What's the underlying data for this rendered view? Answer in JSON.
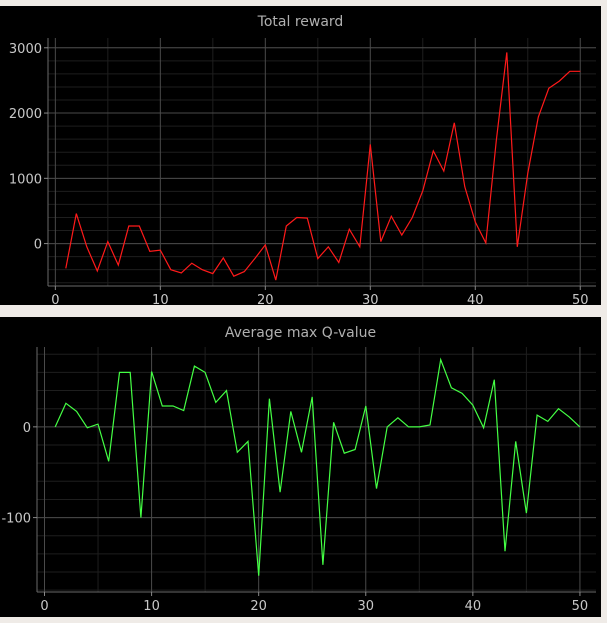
{
  "chart_data": [
    {
      "type": "line",
      "title": "Total reward",
      "xlabel": "",
      "ylabel": "",
      "xlim": [
        -0.7,
        51.5
      ],
      "ylim": [
        -650,
        3150
      ],
      "xticks": [
        0,
        10,
        20,
        30,
        40,
        50
      ],
      "yticks": [
        0,
        1000,
        2000,
        3000
      ],
      "ytick_labels": [
        "0",
        "1000",
        "2000",
        "3000"
      ],
      "grid": true,
      "series": [
        {
          "color": "#ff1a1a",
          "x": [
            1,
            2,
            3,
            4,
            5,
            6,
            7,
            8,
            9,
            10,
            11,
            12,
            13,
            14,
            15,
            16,
            17,
            18,
            19,
            20,
            21,
            22,
            23,
            24,
            25,
            26,
            27,
            28,
            29,
            30,
            31,
            32,
            33,
            34,
            35,
            36,
            37,
            38,
            39,
            40,
            41,
            42,
            43,
            44,
            45,
            46,
            47,
            48,
            49,
            50
          ],
          "y": [
            -380,
            460,
            -50,
            -420,
            30,
            -330,
            270,
            270,
            -120,
            -100,
            -400,
            -450,
            -300,
            -400,
            -460,
            -220,
            -500,
            -430,
            -230,
            -20,
            -560,
            270,
            400,
            390,
            -230,
            -50,
            -290,
            220,
            -50,
            1520,
            30,
            420,
            130,
            400,
            810,
            1420,
            1110,
            1850,
            870,
            330,
            10,
            1580,
            2930,
            -50,
            1080,
            1940,
            2380,
            2490,
            2640,
            2640
          ]
        }
      ]
    },
    {
      "type": "line",
      "title": "Average max Q-value",
      "xlabel": "",
      "ylabel": "",
      "xlim": [
        -0.7,
        51.5
      ],
      "ylim": [
        -182,
        88
      ],
      "xticks": [
        0,
        10,
        20,
        30,
        40,
        50
      ],
      "yticks": [
        0,
        -100
      ],
      "ytick_labels": [
        "0",
        "-100"
      ],
      "grid": true,
      "series": [
        {
          "color": "#44ff44",
          "x": [
            1,
            2,
            3,
            4,
            5,
            6,
            7,
            8,
            9,
            10,
            11,
            12,
            13,
            14,
            15,
            16,
            17,
            18,
            19,
            20,
            21,
            22,
            23,
            24,
            25,
            26,
            27,
            28,
            29,
            30,
            31,
            32,
            33,
            34,
            35,
            36,
            37,
            38,
            39,
            40,
            41,
            42,
            43,
            44,
            45,
            46,
            47,
            48,
            49,
            50
          ],
          "y": [
            0,
            26,
            17,
            -1,
            3,
            -38,
            60,
            60,
            -100,
            61,
            23,
            23,
            18,
            67,
            60,
            27,
            40,
            -28,
            -16,
            -164,
            31,
            -72,
            17,
            -28,
            33,
            -152,
            5,
            -29,
            -25,
            23,
            -68,
            0,
            10,
            0,
            0,
            2,
            74,
            43,
            37,
            24,
            -1,
            52,
            -137,
            -16,
            -95,
            13,
            6,
            20,
            11,
            0
          ]
        }
      ]
    }
  ]
}
